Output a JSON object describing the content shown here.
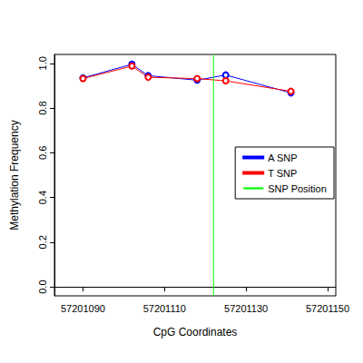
{
  "chart_data": {
    "type": "line",
    "x_label": "CpG Coordinates",
    "y_label": "Methylation Frequency",
    "xlim": [
      57201083,
      57201152
    ],
    "xticks": [
      57201090,
      57201110,
      57201130,
      57201150
    ],
    "ylim": [
      -0.04,
      1.04
    ],
    "yticks": [
      {
        "value": 0,
        "label": "0.0"
      },
      {
        "value": 0.2,
        "label": "0.2"
      },
      {
        "value": 0.4,
        "label": "0.4"
      },
      {
        "value": 0.6,
        "label": "0.6"
      },
      {
        "value": 0.8,
        "label": "0.8"
      },
      {
        "value": 1,
        "label": "1.0"
      }
    ],
    "legend": "right",
    "grid": false,
    "series": [
      {
        "name": "A SNP",
        "color": "#0000ff",
        "marker": "circle",
        "x": [
          57201090,
          57201102,
          57201106,
          57201118,
          57201125,
          57201141
        ],
        "values": [
          0.935,
          0.996,
          0.945,
          0.925,
          0.948,
          0.868
        ]
      },
      {
        "name": "T SNP",
        "color": "#ff0000",
        "marker": "circle",
        "x": [
          57201090,
          57201102,
          57201106,
          57201118,
          57201125,
          57201141
        ],
        "values": [
          0.932,
          0.988,
          0.938,
          0.932,
          0.922,
          0.875
        ]
      },
      {
        "name": "SNP Position",
        "color": "#00ff00",
        "type": "vline",
        "x": [
          57201122
        ]
      }
    ]
  }
}
